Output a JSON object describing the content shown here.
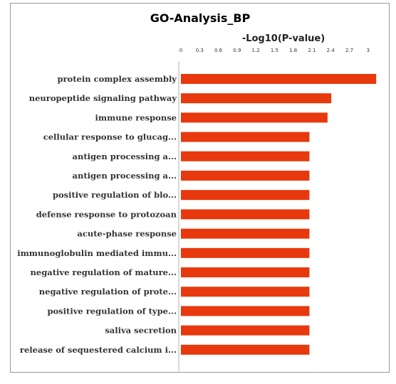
{
  "chart_data": {
    "type": "bar",
    "orientation": "horizontal",
    "title": "GO-Analysis_BP",
    "xlabel": "-Log10(P-value)",
    "x_axis_position": "top",
    "xlim": [
      0,
      3.15
    ],
    "xticks": [
      "0",
      "0.3",
      "0.6",
      "0.9",
      "1.2",
      "1.5",
      "1.8",
      "2.1",
      "2.4",
      "2.7",
      "3"
    ],
    "grid": false,
    "bar_color": "#e8380d",
    "categories": [
      "protein complex assembly",
      "neuropeptide signaling pathway",
      "immune response",
      "cellular response to glucag...",
      "antigen processing a...",
      "antigen processing a...",
      "positive regulation of blo...",
      "defense response to protozoan",
      "acute-phase response",
      "immunoglobulin mediated immu...",
      "negative regulation of mature...",
      "negative regulation of prote...",
      "positive regulation of type...",
      "saliva secretion",
      "release of sequestered calcium i..."
    ],
    "values": [
      3.13,
      2.41,
      2.35,
      2.06,
      2.06,
      2.06,
      2.06,
      2.06,
      2.06,
      2.06,
      2.06,
      2.06,
      2.06,
      2.06,
      2.06
    ]
  }
}
